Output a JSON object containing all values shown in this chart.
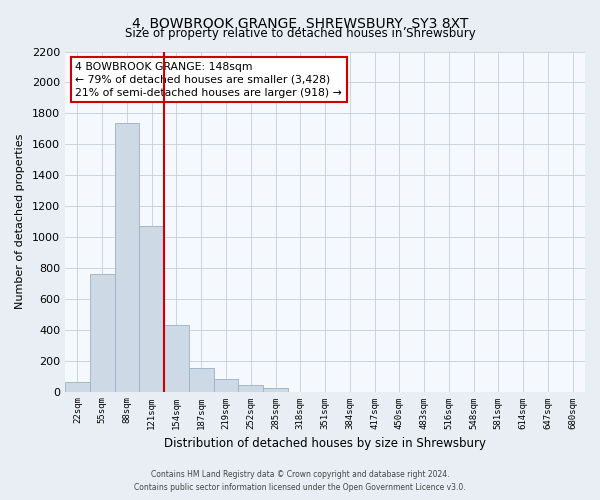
{
  "title": "4, BOWBROOK GRANGE, SHREWSBURY, SY3 8XT",
  "subtitle": "Size of property relative to detached houses in Shrewsbury",
  "xlabel": "Distribution of detached houses by size in Shrewsbury",
  "ylabel": "Number of detached properties",
  "bar_labels": [
    "22sqm",
    "55sqm",
    "88sqm",
    "121sqm",
    "154sqm",
    "187sqm",
    "219sqm",
    "252sqm",
    "285sqm",
    "318sqm",
    "351sqm",
    "384sqm",
    "417sqm",
    "450sqm",
    "483sqm",
    "516sqm",
    "548sqm",
    "581sqm",
    "614sqm",
    "647sqm",
    "680sqm"
  ],
  "bar_values": [
    60,
    760,
    1740,
    1070,
    430,
    155,
    80,
    45,
    25,
    0,
    0,
    0,
    0,
    0,
    0,
    0,
    0,
    0,
    0,
    0,
    0
  ],
  "bar_color": "#cdd9e5",
  "bar_edge_color": "#9ab0c4",
  "vline_color": "#cc0000",
  "annotation_title": "4 BOWBROOK GRANGE: 148sqm",
  "annotation_line1": "← 79% of detached houses are smaller (3,428)",
  "annotation_line2": "21% of semi-detached houses are larger (918) →",
  "annotation_box_color": "white",
  "annotation_box_edge": "#cc0000",
  "ylim": [
    0,
    2200
  ],
  "yticks": [
    0,
    200,
    400,
    600,
    800,
    1000,
    1200,
    1400,
    1600,
    1800,
    2000,
    2200
  ],
  "footer_line1": "Contains HM Land Registry data © Crown copyright and database right 2024.",
  "footer_line2": "Contains public sector information licensed under the Open Government Licence v3.0.",
  "bg_color": "#e8eef4",
  "plot_bg_color": "#f5f8fc",
  "grid_color": "#c5cdd8"
}
